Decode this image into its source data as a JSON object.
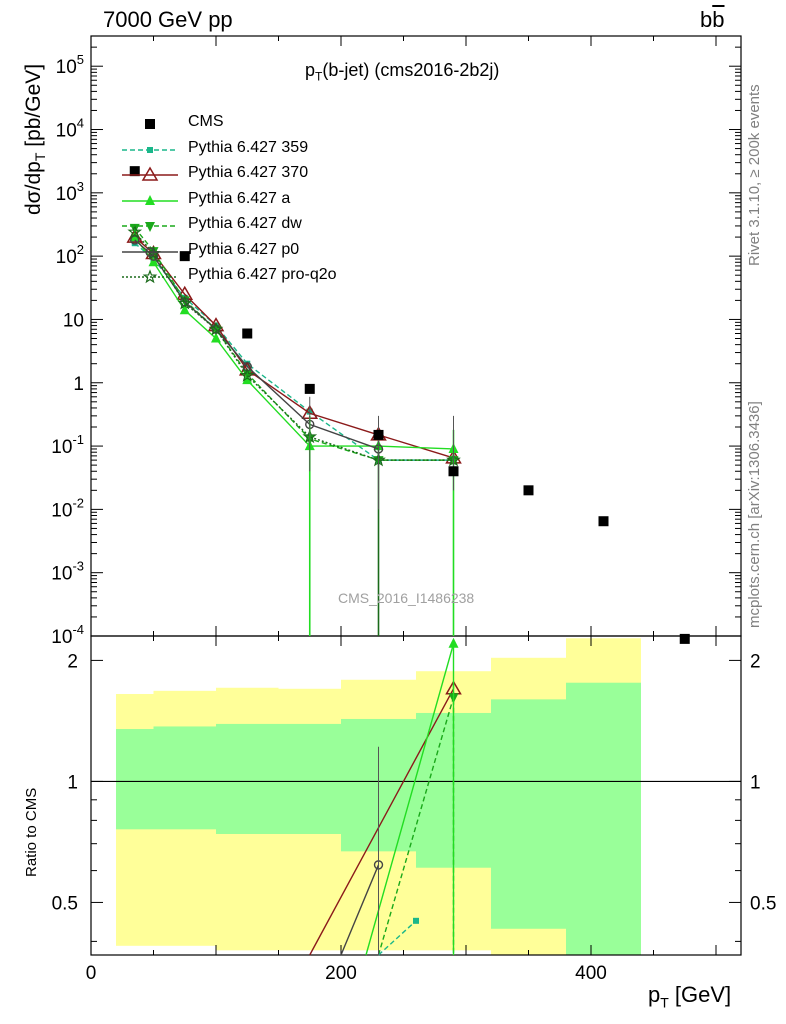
{
  "header": {
    "left": "7000 GeV pp",
    "right_main": "b",
    "right_bar": "b"
  },
  "title": {
    "main": "p",
    "sub": "T",
    "rest": "(b-jet) (cms2016-2b2j)"
  },
  "side_text": {
    "rivet": "Rivet 3.1.10, ≥ 200k events",
    "mcplots": "mcplots.cern.ch [arXiv:1306.3436]"
  },
  "watermark": "CMS_2016_I1486238",
  "axis_labels": {
    "y_top": {
      "main": "dσ/dp",
      "sub": "T",
      "rest": " [pb/GeV]"
    },
    "y_ratio": "Ratio to CMS",
    "x": {
      "main": "p",
      "sub": "T",
      "rest": " [GeV]"
    }
  },
  "legend": [
    {
      "label": "CMS",
      "color": "#000000",
      "marker": "square-filled",
      "dash": ""
    },
    {
      "label": "Pythia 6.427 359",
      "color": "#1ab78a",
      "marker": "square-small",
      "dash": "5,3"
    },
    {
      "label": "Pythia 6.427 370",
      "color": "#8b1a1a",
      "marker": "triangle-open",
      "dash": ""
    },
    {
      "label": "Pythia 6.427 a",
      "color": "#22dd22",
      "marker": "triangle-filled",
      "dash": ""
    },
    {
      "label": "Pythia 6.427 dw",
      "color": "#1aa81a",
      "marker": "triangle-down",
      "dash": "5,3"
    },
    {
      "label": "Pythia 6.427 p0",
      "color": "#444444",
      "marker": "circle-open",
      "dash": ""
    },
    {
      "label": "Pythia 6.427 pro-q2o",
      "color": "#1a6a1a",
      "marker": "star",
      "dash": "2,2"
    }
  ],
  "chart_data": [
    {
      "type": "scatter",
      "panel": "main",
      "xlim": [
        0,
        520
      ],
      "ylim": [
        0.0001,
        300000
      ],
      "yscale": "log",
      "y_ticks": [
        "10^-4",
        "10^-3",
        "10^-2",
        "10^-1",
        "1",
        "10",
        "10^2",
        "10^3",
        "10^4",
        "10^5"
      ],
      "x_ticks": [
        0,
        200,
        400
      ],
      "cms": [
        [
          35,
          2200
        ],
        [
          75,
          100
        ],
        [
          125,
          6
        ],
        [
          175,
          0.8
        ],
        [
          230,
          0.15
        ],
        [
          290,
          0.04
        ],
        [
          350,
          0.02
        ],
        [
          410,
          0.0065
        ],
        [
          475,
          9e-05
        ]
      ],
      "series": [
        {
          "name": "Pythia 6.427 359",
          "x": [
            35,
            50,
            75,
            100,
            125,
            175,
            230,
            290
          ],
          "y": [
            160,
            90,
            22,
            8,
            2,
            0.35,
            0.06,
            0.06
          ]
        },
        {
          "name": "Pythia 6.427 370",
          "x": [
            35,
            50,
            75,
            100,
            125,
            175,
            230,
            290
          ],
          "y": [
            200,
            110,
            25,
            8,
            1.6,
            0.33,
            0.15,
            0.065
          ]
        },
        {
          "name": "Pythia 6.427 a",
          "x": [
            35,
            50,
            75,
            100,
            125,
            175,
            230,
            290
          ],
          "y": [
            200,
            80,
            14,
            5,
            1.1,
            0.1,
            0.1,
            0.09
          ]
        },
        {
          "name": "Pythia 6.427 dw",
          "x": [
            35,
            50,
            75,
            100,
            125,
            175,
            230,
            290
          ],
          "y": [
            280,
            120,
            20,
            7,
            1.4,
            0.13,
            0.06,
            0.06
          ]
        },
        {
          "name": "Pythia 6.427 p0",
          "x": [
            35,
            50,
            75,
            100,
            125,
            175,
            230,
            290
          ],
          "y": [
            180,
            100,
            19,
            7,
            1.8,
            0.22,
            0.09,
            null
          ]
        },
        {
          "name": "Pythia 6.427 pro-q2o",
          "x": [
            35,
            50,
            75,
            100,
            125,
            175,
            230,
            290
          ],
          "y": [
            240,
            110,
            18,
            7,
            1.3,
            0.14,
            0.06,
            0.06
          ]
        }
      ]
    },
    {
      "type": "area",
      "panel": "ratio",
      "xlabel": "pT [GeV]",
      "ylabel": "Ratio to CMS",
      "xlim": [
        0,
        520
      ],
      "ylim": [
        0.37,
        2.3
      ],
      "yscale": "log",
      "y_ticks": [
        0.5,
        1,
        2
      ],
      "bands": [
        {
          "xlo": 20,
          "xhi": 50,
          "green": [
            0.76,
            1.35
          ],
          "yellow": [
            0.39,
            1.65
          ]
        },
        {
          "xlo": 50,
          "xhi": 100,
          "green": [
            0.76,
            1.37
          ],
          "yellow": [
            0.39,
            1.68
          ]
        },
        {
          "xlo": 100,
          "xhi": 150,
          "green": [
            0.74,
            1.39
          ],
          "yellow": [
            0.38,
            1.71
          ]
        },
        {
          "xlo": 150,
          "xhi": 200,
          "green": [
            0.74,
            1.39
          ],
          "yellow": [
            0.38,
            1.7
          ]
        },
        {
          "xlo": 200,
          "xhi": 260,
          "green": [
            0.67,
            1.43
          ],
          "yellow": [
            0.38,
            1.79
          ]
        },
        {
          "xlo": 260,
          "xhi": 320,
          "green": [
            0.61,
            1.48
          ],
          "yellow": [
            0.38,
            1.88
          ]
        },
        {
          "xlo": 320,
          "xhi": 380,
          "green": [
            0.43,
            1.6
          ],
          "yellow": [
            0.37,
            2.03
          ]
        },
        {
          "xlo": 380,
          "xhi": 440,
          "green": [
            0.37,
            1.76
          ],
          "yellow": [
            0.37,
            2.27
          ]
        }
      ],
      "ratio_series": [
        {
          "name": "Pythia 6.427 370",
          "x": [
            175,
            290
          ],
          "y": [
            0.37,
            1.7
          ]
        },
        {
          "name": "Pythia 6.427 a",
          "x": [
            220,
            290
          ],
          "y": [
            0.37,
            2.2
          ]
        },
        {
          "name": "Pythia 6.427 dw",
          "x": [
            230,
            290
          ],
          "y": [
            0.37,
            1.62
          ]
        },
        {
          "name": "Pythia 6.427 p0",
          "x": [
            200,
            230
          ],
          "y": [
            0.37,
            0.62
          ]
        },
        {
          "name": "Pythia 6.427 359",
          "x": [
            230,
            260
          ],
          "y": [
            0.37,
            0.45
          ]
        }
      ]
    }
  ]
}
